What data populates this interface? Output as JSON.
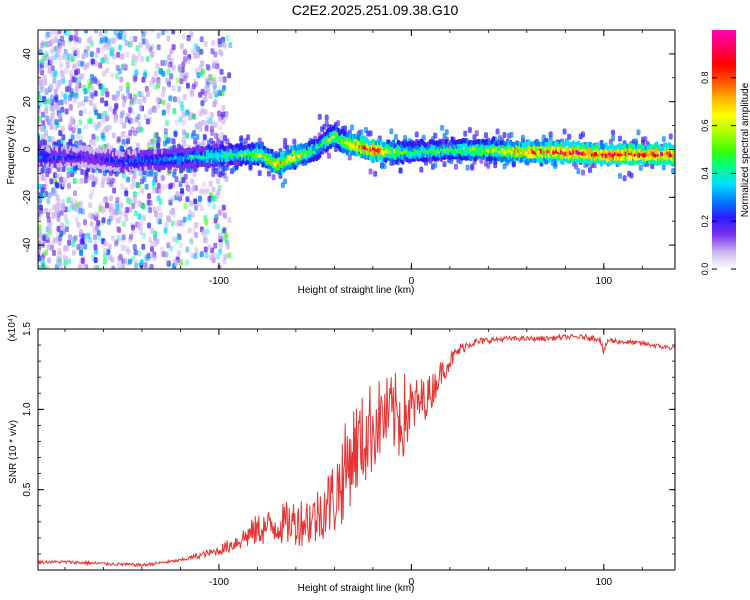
{
  "title": "C2E2.2025.251.09.38.G10",
  "colors": {
    "snr_line": "#e53535",
    "axis": "#000000",
    "tick": "#000000"
  },
  "colormap": [
    "#ffffff",
    "#cdb4f2",
    "#7b2ff0",
    "#2a1bff",
    "#0080ff",
    "#00e0ff",
    "#00ff80",
    "#40ff00",
    "#b0ff00",
    "#ffff00",
    "#ffb000",
    "#ff5000",
    "#ff0000",
    "#ff0060",
    "#ff00b0"
  ],
  "chart_data": [
    {
      "type": "heatmap",
      "title": "C2E2.2025.251.09.38.G10",
      "xlabel": "Height of straight line (km)",
      "ylabel": "Frequency (Hz)",
      "xlim": [
        -194,
        137
      ],
      "ylim": [
        -50,
        50
      ],
      "xticks": [
        -100,
        0,
        100
      ],
      "xtick_labels": [
        "-100",
        "0",
        "100"
      ],
      "yticks": [
        -40,
        -20,
        0,
        20,
        40
      ],
      "ytick_labels": [
        "-40",
        "-20",
        "0",
        "20",
        "40"
      ],
      "colorbar": {
        "label": "Normalized spectral amplitude",
        "range": [
          0,
          1
        ],
        "ticks": [
          0.0,
          0.2,
          0.4,
          0.6,
          0.8
        ],
        "tick_labels": [
          "0.0",
          "0.2",
          "0.4",
          "0.6",
          "0.8"
        ]
      },
      "ridge": {
        "x": [
          -194,
          -170,
          -150,
          -130,
          -110,
          -90,
          -78,
          -70,
          -60,
          -50,
          -45,
          -40,
          -35,
          -30,
          -20,
          -10,
          0,
          20,
          40,
          60,
          80,
          100,
          120,
          137
        ],
        "freq": [
          -3,
          -3,
          -5,
          -4,
          -3,
          -2,
          -2,
          -6,
          -3,
          0,
          3,
          6,
          3,
          2,
          0,
          -1,
          -1,
          0,
          0,
          -1,
          -1,
          -2,
          -2,
          -2
        ],
        "amplitude": [
          0.3,
          0.2,
          0.25,
          0.3,
          0.4,
          0.5,
          0.6,
          0.7,
          0.7,
          0.5,
          0.5,
          0.6,
          0.6,
          0.8,
          0.95,
          0.6,
          0.5,
          0.5,
          0.6,
          0.8,
          0.9,
          0.95,
          0.95,
          0.95
        ]
      }
    },
    {
      "type": "line",
      "xlabel": "Height of straight line (km)",
      "ylabel": "SNR (10 * v/v)",
      "y_multiplier_label": "(x10⁴)",
      "xlim": [
        -194,
        137
      ],
      "ylim": [
        0,
        1.5
      ],
      "xticks": [
        -100,
        0,
        100
      ],
      "xtick_labels": [
        "-100",
        "0",
        "100"
      ],
      "yticks": [
        0.5,
        1.0,
        1.5
      ],
      "ytick_labels": [
        "0.5",
        "1.0",
        "1.5"
      ],
      "series": [
        {
          "name": "SNR",
          "x": [
            -194,
            -180,
            -160,
            -140,
            -120,
            -100,
            -90,
            -80,
            -70,
            -60,
            -50,
            -45,
            -40,
            -35,
            -30,
            -25,
            -20,
            -15,
            -10,
            -5,
            0,
            5,
            10,
            15,
            20,
            25,
            30,
            40,
            50,
            60,
            70,
            80,
            90,
            98,
            100,
            102,
            110,
            120,
            130,
            137
          ],
          "y": [
            0.05,
            0.05,
            0.04,
            0.03,
            0.06,
            0.12,
            0.18,
            0.25,
            0.28,
            0.3,
            0.32,
            0.4,
            0.45,
            0.6,
            0.75,
            0.8,
            0.9,
            0.95,
            0.97,
            0.95,
            1.0,
            1.05,
            1.1,
            1.22,
            1.3,
            1.37,
            1.41,
            1.43,
            1.44,
            1.44,
            1.44,
            1.45,
            1.45,
            1.44,
            1.35,
            1.43,
            1.42,
            1.41,
            1.39,
            1.38
          ],
          "noise": [
            0.01,
            0.01,
            0.01,
            0.01,
            0.01,
            0.03,
            0.06,
            0.1,
            0.12,
            0.15,
            0.18,
            0.2,
            0.25,
            0.3,
            0.3,
            0.3,
            0.3,
            0.25,
            0.25,
            0.3,
            0.2,
            0.15,
            0.12,
            0.08,
            0.06,
            0.04,
            0.03,
            0.02,
            0.015,
            0.015,
            0.015,
            0.015,
            0.015,
            0.02,
            0.02,
            0.02,
            0.015,
            0.015,
            0.015,
            0.015
          ]
        }
      ]
    }
  ]
}
